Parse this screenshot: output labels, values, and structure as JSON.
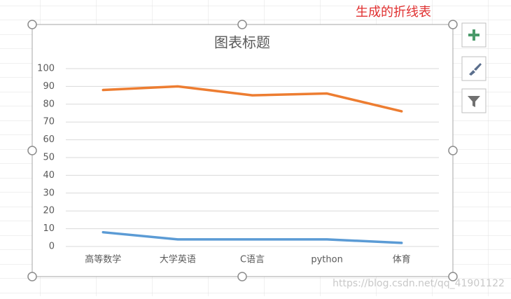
{
  "annotation": "生成的折线表",
  "watermark": "https://blog.csdn.net/qq_41901122",
  "chart_data": {
    "type": "line",
    "title": "图表标题",
    "categories": [
      "高等数学",
      "大学英语",
      "C语言",
      "python",
      "体育"
    ],
    "series": [
      {
        "color": "#ed7d31",
        "values": [
          88,
          90,
          85,
          86,
          76
        ]
      },
      {
        "color": "#5b9bd5",
        "values": [
          8,
          4,
          4,
          4,
          2
        ]
      }
    ],
    "ylim": [
      0,
      100
    ],
    "yticks": [
      0,
      10,
      20,
      30,
      40,
      50,
      60,
      70,
      80,
      90,
      100
    ],
    "grid": true
  }
}
